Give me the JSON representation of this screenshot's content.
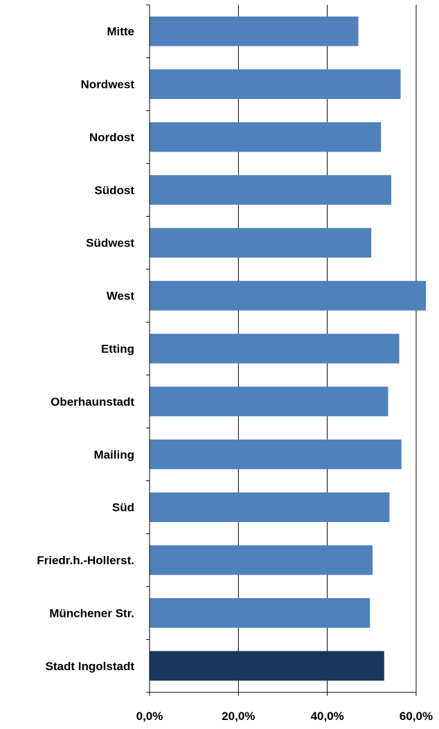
{
  "chart_data": {
    "type": "bar",
    "orientation": "horizontal",
    "categories": [
      "Mitte",
      "Nordwest",
      "Nordost",
      "Südost",
      "Südwest",
      "West",
      "Etting",
      "Oberhaunstadt",
      "Mailing",
      "Süd",
      "Friedr.h.-Hollerst.",
      "Münchener Str.",
      "Stadt  Ingolstadt"
    ],
    "values": [
      47.0,
      56.5,
      52.1,
      54.4,
      49.9,
      62.2,
      56.2,
      53.7,
      56.7,
      54.0,
      50.2,
      49.6,
      52.8
    ],
    "highlight_index": 12,
    "xlim": [
      0,
      60
    ],
    "xticks": [
      0,
      20,
      40,
      60
    ],
    "xtick_labels": [
      "0,0%",
      "20,0%",
      "40,0%",
      "60,0%"
    ],
    "grid": "vertical",
    "title": "",
    "xlabel": "",
    "ylabel": "",
    "colors": {
      "bar": "#4f81bd",
      "highlight": "#17375e",
      "grid": "#000000",
      "axis": "#000000"
    }
  }
}
